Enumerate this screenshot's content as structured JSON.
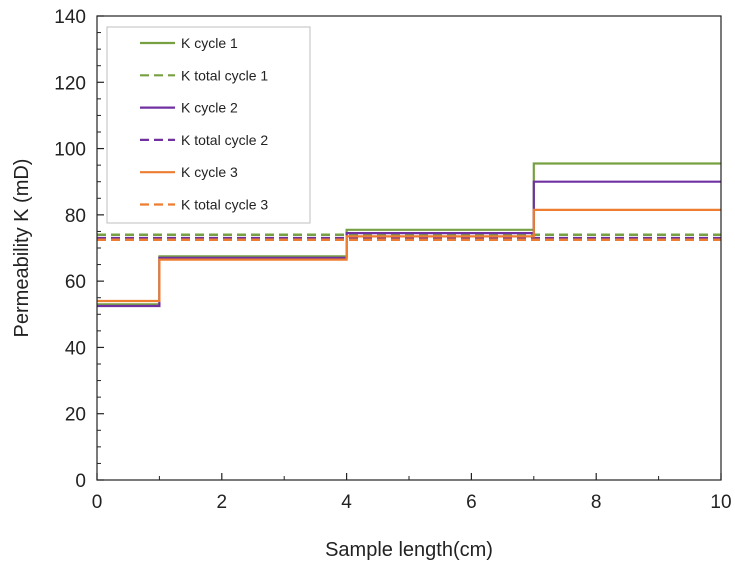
{
  "chart_data": {
    "type": "line",
    "xlabel": "Sample length(cm)",
    "ylabel": "Permeability K (mD)",
    "xlim": [
      0,
      10
    ],
    "ylim": [
      0,
      140
    ],
    "x_ticks": [
      0,
      2,
      4,
      6,
      8,
      10
    ],
    "y_ticks": [
      0,
      20,
      40,
      60,
      80,
      100,
      120,
      140
    ],
    "grid": false,
    "legend_position": "top-left",
    "series": [
      {
        "name": "K cycle 1",
        "style": "solid",
        "color": "#77a043",
        "steps": [
          {
            "x0": 0,
            "x1": 1,
            "y": 53
          },
          {
            "x0": 1,
            "x1": 4,
            "y": 67.5
          },
          {
            "x0": 4,
            "x1": 7,
            "y": 75.5
          },
          {
            "x0": 7,
            "x1": 10,
            "y": 95.5
          }
        ]
      },
      {
        "name": "K total cycle 1",
        "style": "dashed",
        "color": "#77a043",
        "steps": [
          {
            "x0": 0,
            "x1": 10,
            "y": 74
          }
        ]
      },
      {
        "name": "K cycle 2",
        "style": "solid",
        "color": "#7030a0",
        "steps": [
          {
            "x0": 0,
            "x1": 1,
            "y": 52.5
          },
          {
            "x0": 1,
            "x1": 4,
            "y": 67
          },
          {
            "x0": 4,
            "x1": 7,
            "y": 74.5
          },
          {
            "x0": 7,
            "x1": 10,
            "y": 90
          }
        ]
      },
      {
        "name": "K total cycle 2",
        "style": "dashed",
        "color": "#7030a0",
        "steps": [
          {
            "x0": 0,
            "x1": 10,
            "y": 73
          }
        ]
      },
      {
        "name": "K cycle 3",
        "style": "solid",
        "color": "#ed7d31",
        "steps": [
          {
            "x0": 0,
            "x1": 1,
            "y": 54
          },
          {
            "x0": 1,
            "x1": 4,
            "y": 66.5
          },
          {
            "x0": 4,
            "x1": 7,
            "y": 73.5
          },
          {
            "x0": 7,
            "x1": 10,
            "y": 81.5
          }
        ]
      },
      {
        "name": "K total cycle 3",
        "style": "dashed",
        "color": "#ed7d31",
        "steps": [
          {
            "x0": 0,
            "x1": 10,
            "y": 72.5
          }
        ]
      }
    ]
  }
}
